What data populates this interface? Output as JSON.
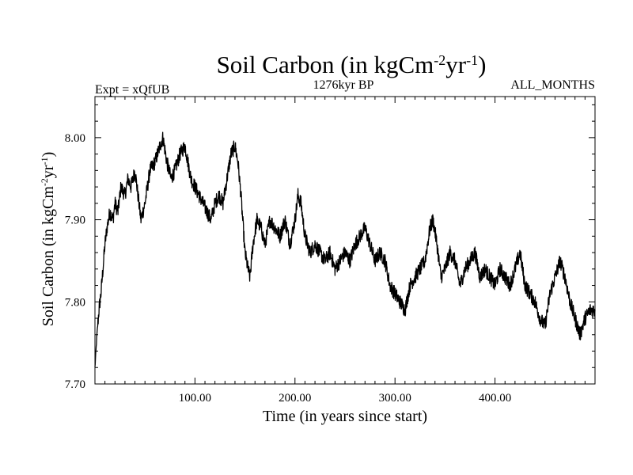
{
  "chart_data": {
    "type": "line",
    "title": {
      "main": "Soil Carbon (in kgCm",
      "exp1": "-2",
      "mid": "yr",
      "exp2": "-1",
      "end": ")"
    },
    "subtitle_left": "Expt = xQfUB",
    "subtitle_center": "1276kyr BP",
    "subtitle_right": "ALL_MONTHS",
    "xlabel": "Time (in years since start)",
    "ylabel": {
      "main": "Soil Carbon (in kgCm",
      "exp1": "-2",
      "mid": "yr",
      "exp2": "-1",
      "end": ")"
    },
    "xlim": [
      0,
      500
    ],
    "ylim": [
      7.7,
      8.05
    ],
    "xticks": [
      100,
      200,
      300,
      400
    ],
    "xtick_labels": [
      "100.00",
      "200.00",
      "300.00",
      "400.00"
    ],
    "yticks": [
      7.7,
      7.8,
      7.9,
      8.0
    ],
    "ytick_labels": [
      "7.70",
      "7.80",
      "7.90",
      "8.00"
    ],
    "series": [
      {
        "name": "Soil Carbon",
        "color": "#000000",
        "x": [
          0,
          2,
          4,
          6,
          8,
          10,
          12,
          15,
          18,
          20,
          23,
          26,
          30,
          33,
          36,
          40,
          43,
          46,
          50,
          55,
          60,
          65,
          68,
          72,
          76,
          80,
          85,
          90,
          93,
          96,
          100,
          104,
          108,
          112,
          116,
          120,
          124,
          128,
          132,
          136,
          140,
          143,
          146,
          150,
          153,
          155,
          158,
          162,
          166,
          170,
          175,
          180,
          185,
          190,
          195,
          200,
          203,
          206,
          210,
          215,
          220,
          225,
          230,
          235,
          240,
          245,
          250,
          255,
          260,
          265,
          270,
          275,
          280,
          285,
          290,
          295,
          300,
          305,
          310,
          315,
          320,
          325,
          330,
          335,
          338,
          342,
          346,
          350,
          355,
          360,
          365,
          370,
          375,
          380,
          385,
          390,
          395,
          400,
          405,
          410,
          415,
          420,
          425,
          430,
          435,
          440,
          445,
          450,
          455,
          460,
          465,
          470,
          475,
          480,
          485,
          490,
          495,
          500
        ],
        "values": [
          7.72,
          7.76,
          7.79,
          7.81,
          7.84,
          7.87,
          7.89,
          7.91,
          7.9,
          7.92,
          7.91,
          7.94,
          7.93,
          7.95,
          7.94,
          7.96,
          7.93,
          7.9,
          7.92,
          7.96,
          7.97,
          7.99,
          8.0,
          7.97,
          7.95,
          7.96,
          7.98,
          7.99,
          7.97,
          7.95,
          7.94,
          7.93,
          7.92,
          7.91,
          7.9,
          7.92,
          7.93,
          7.92,
          7.95,
          7.98,
          7.99,
          7.97,
          7.93,
          7.86,
          7.84,
          7.83,
          7.87,
          7.9,
          7.89,
          7.87,
          7.9,
          7.89,
          7.88,
          7.9,
          7.87,
          7.9,
          7.93,
          7.92,
          7.88,
          7.86,
          7.87,
          7.86,
          7.85,
          7.86,
          7.84,
          7.85,
          7.86,
          7.85,
          7.87,
          7.88,
          7.89,
          7.87,
          7.85,
          7.86,
          7.85,
          7.82,
          7.81,
          7.8,
          7.79,
          7.82,
          7.83,
          7.84,
          7.85,
          7.89,
          7.9,
          7.87,
          7.83,
          7.84,
          7.86,
          7.85,
          7.82,
          7.84,
          7.85,
          7.86,
          7.83,
          7.84,
          7.83,
          7.82,
          7.84,
          7.83,
          7.82,
          7.84,
          7.86,
          7.82,
          7.81,
          7.8,
          7.78,
          7.77,
          7.81,
          7.83,
          7.85,
          7.83,
          7.8,
          7.78,
          7.76,
          7.78,
          7.79,
          7.79
        ]
      }
    ]
  }
}
